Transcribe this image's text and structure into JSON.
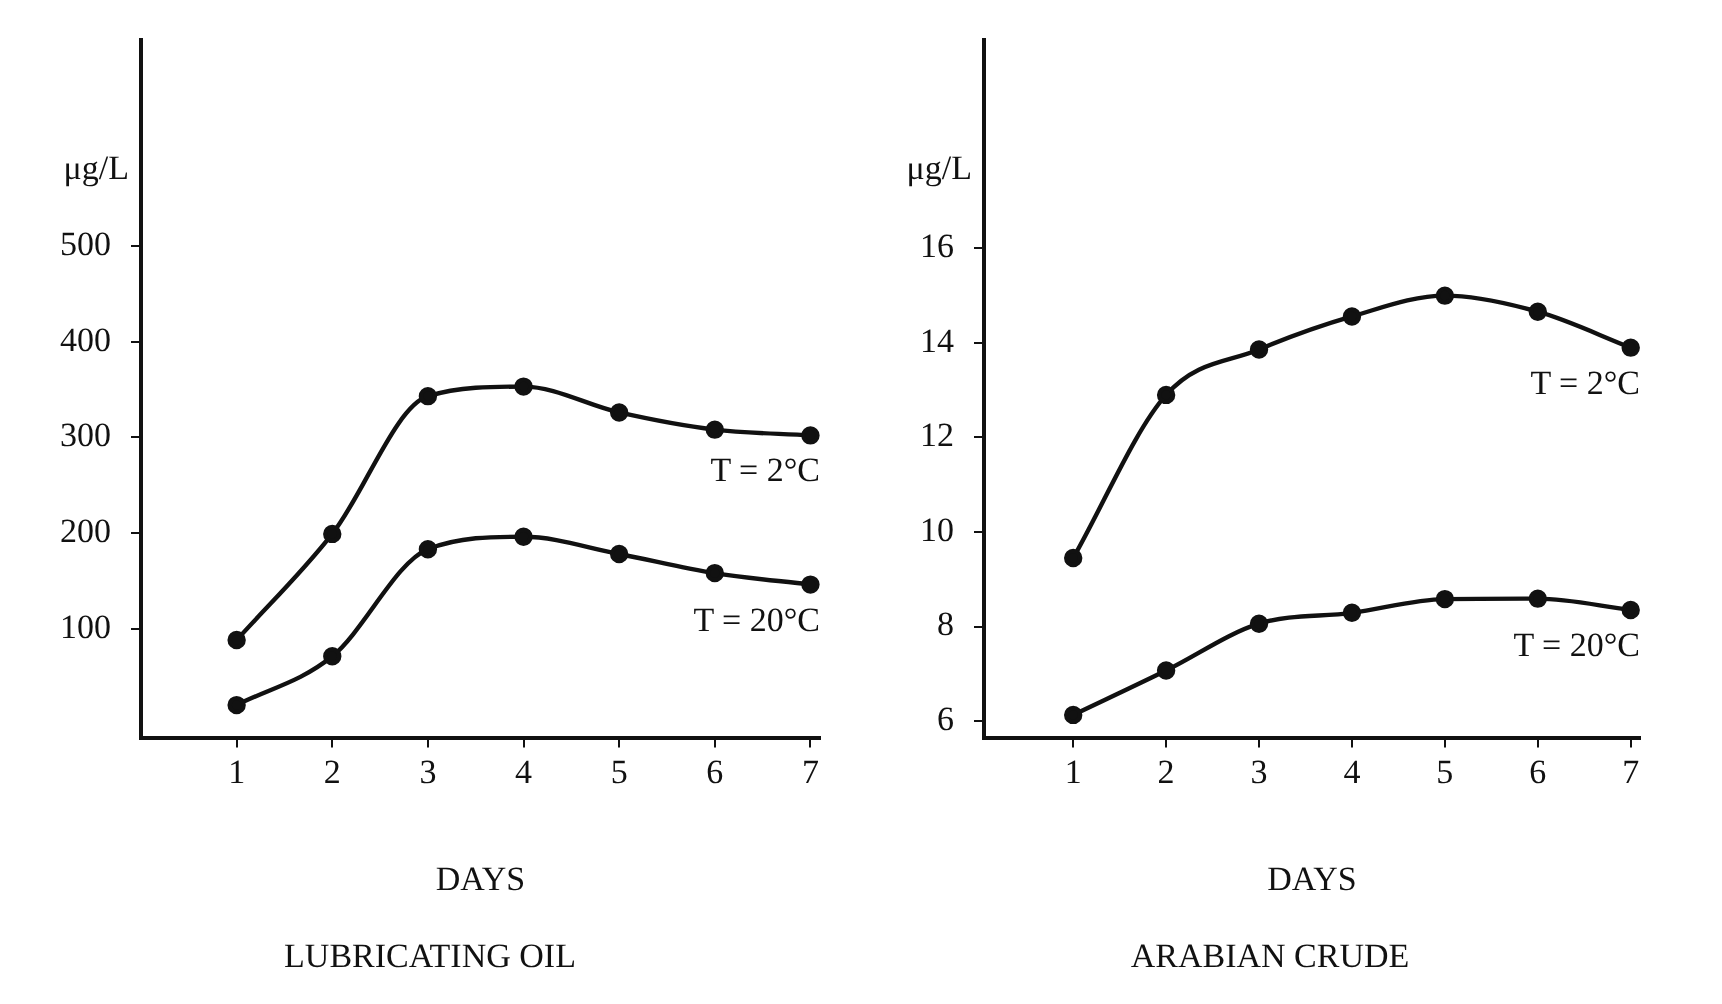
{
  "chart_data": [
    {
      "type": "line",
      "title": "LUBRICATING OIL",
      "xlabel": "DAYS",
      "ylabel": "μg/L",
      "x": [
        1,
        2,
        3,
        4,
        5,
        6,
        7
      ],
      "series": [
        {
          "name": "T = 2°C",
          "color": "#111111",
          "values": [
            88,
            199,
            343,
            353,
            326,
            308,
            302
          ]
        },
        {
          "name": "T = 20°C",
          "color": "#111111",
          "values": [
            20,
            71,
            183,
            196,
            178,
            158,
            146
          ]
        }
      ],
      "xlim": [
        0,
        7.1
      ],
      "xticks": [
        1,
        2,
        3,
        4,
        5,
        6,
        7
      ],
      "ylim": [
        -14,
        715
      ],
      "yticks": [
        100,
        200,
        300,
        400,
        500
      ],
      "grid": false,
      "legend": false,
      "marker": "circle",
      "line_style": "solid"
    },
    {
      "type": "line",
      "title": "ARABIAN CRUDE",
      "xlabel": "DAYS",
      "ylabel": "μg/L",
      "x": [
        1,
        2,
        3,
        4,
        5,
        6,
        7
      ],
      "series": [
        {
          "name": "T = 2°C",
          "color": "#111111",
          "values": [
            9.45,
            12.9,
            13.86,
            14.56,
            15.0,
            14.66,
            13.9
          ]
        },
        {
          "name": "T = 20°C",
          "color": "#111111",
          "values": [
            6.13,
            7.07,
            8.06,
            8.29,
            8.58,
            8.59,
            8.35
          ]
        }
      ],
      "xlim": [
        0.04,
        7.1
      ],
      "xticks": [
        1,
        2,
        3,
        4,
        5,
        6,
        7
      ],
      "ylim": [
        5.65,
        20.4
      ],
      "yticks": [
        6,
        8,
        10,
        12,
        14,
        16
      ],
      "grid": false,
      "legend": false,
      "marker": "circle",
      "line_style": "solid"
    }
  ]
}
